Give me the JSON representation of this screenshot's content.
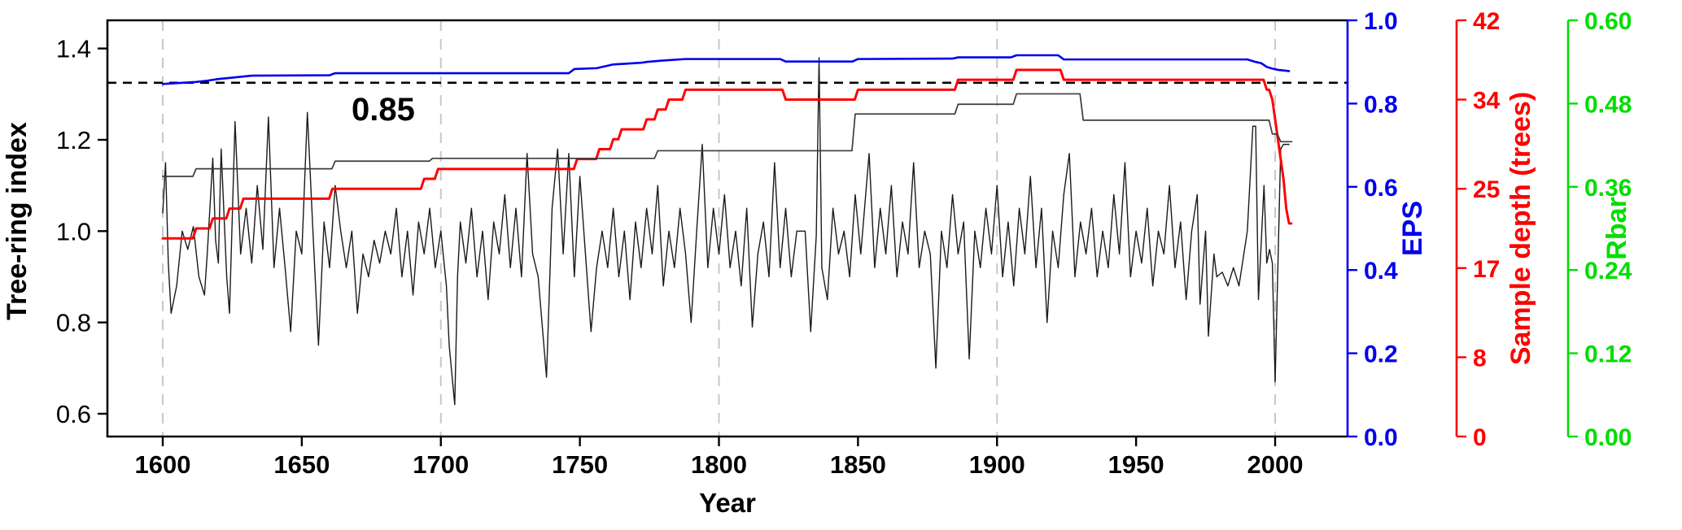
{
  "figure": {
    "background": "#ffffff",
    "frame_color": "#000000",
    "gridline_color": "#c8c8c8"
  },
  "chart_data": {
    "type": "line",
    "title": "",
    "xlabel": "Year",
    "x_range": [
      1580,
      2026
    ],
    "x_ticks": [
      1600,
      1650,
      1700,
      1750,
      1800,
      1850,
      1900,
      1950,
      2000
    ],
    "gridline_years": [
      1600,
      1700,
      1800,
      1900,
      2000
    ],
    "grid": "vertical-dashed",
    "legend": "none",
    "axes": [
      {
        "id": "tree_ring",
        "side": "left",
        "label": "Tree-ring index",
        "color": "#000000",
        "ticks": [
          1.4,
          1.2,
          1.0,
          0.8,
          0.6
        ],
        "tick_format": 1,
        "range": [
          0.6,
          1.4
        ]
      },
      {
        "id": "eps",
        "side": "right",
        "label": "EPS",
        "color": "#0000ee",
        "ticks": [
          1.0,
          0.8,
          0.6,
          0.4,
          0.2,
          0.0
        ],
        "tick_format": 1,
        "range": [
          0.0,
          1.0
        ]
      },
      {
        "id": "depth",
        "side": "right",
        "label": "Sample depth (trees)",
        "color": "#ff0000",
        "ticks": [
          42,
          34,
          25,
          17,
          8,
          0
        ],
        "tick_format": 0,
        "range": [
          0,
          42
        ]
      },
      {
        "id": "rbar",
        "side": "right",
        "label": "Rbar",
        "color": "#00dd00",
        "ticks": [
          0.6,
          0.48,
          0.36,
          0.24,
          0.12,
          0.0
        ],
        "tick_format": 2,
        "range": [
          0.0,
          0.6
        ]
      }
    ],
    "threshold": {
      "axis": "eps",
      "value": 0.85,
      "label": "0.85",
      "style": "dashed-black"
    },
    "series": [
      {
        "name": "tree_ring_index",
        "axis": "tree_ring",
        "color": "#1a1a1a",
        "width": 1.4,
        "step": false,
        "points": [
          [
            1600,
            1.04
          ],
          [
            1601,
            1.15
          ],
          [
            1602,
            0.93
          ],
          [
            1603,
            0.82
          ],
          [
            1605,
            0.88
          ],
          [
            1607,
            1.0
          ],
          [
            1609,
            0.96
          ],
          [
            1611,
            1.01
          ],
          [
            1613,
            0.9
          ],
          [
            1615,
            0.86
          ],
          [
            1616,
            0.95
          ],
          [
            1618,
            1.16
          ],
          [
            1619,
            0.98
          ],
          [
            1620,
            0.93
          ],
          [
            1621,
            1.18
          ],
          [
            1623,
            0.9
          ],
          [
            1624,
            0.82
          ],
          [
            1626,
            1.24
          ],
          [
            1628,
            0.95
          ],
          [
            1630,
            1.05
          ],
          [
            1632,
            0.93
          ],
          [
            1634,
            1.1
          ],
          [
            1636,
            0.96
          ],
          [
            1638,
            1.25
          ],
          [
            1640,
            0.92
          ],
          [
            1642,
            1.05
          ],
          [
            1644,
            0.92
          ],
          [
            1646,
            0.78
          ],
          [
            1648,
            1.0
          ],
          [
            1650,
            0.95
          ],
          [
            1652,
            1.26
          ],
          [
            1654,
            1.0
          ],
          [
            1656,
            0.75
          ],
          [
            1658,
            1.02
          ],
          [
            1660,
            0.92
          ],
          [
            1662,
            1.1
          ],
          [
            1664,
            1.0
          ],
          [
            1666,
            0.92
          ],
          [
            1668,
            1.0
          ],
          [
            1670,
            0.82
          ],
          [
            1672,
            0.95
          ],
          [
            1674,
            0.9
          ],
          [
            1676,
            0.98
          ],
          [
            1678,
            0.93
          ],
          [
            1680,
            1.0
          ],
          [
            1682,
            0.95
          ],
          [
            1684,
            1.05
          ],
          [
            1686,
            0.9
          ],
          [
            1688,
            1.0
          ],
          [
            1690,
            0.86
          ],
          [
            1692,
            1.02
          ],
          [
            1694,
            0.95
          ],
          [
            1696,
            1.05
          ],
          [
            1698,
            0.92
          ],
          [
            1700,
            1.0
          ],
          [
            1702,
            0.88
          ],
          [
            1703,
            0.75
          ],
          [
            1705,
            0.62
          ],
          [
            1706,
            0.9
          ],
          [
            1707,
            1.02
          ],
          [
            1709,
            0.93
          ],
          [
            1711,
            1.05
          ],
          [
            1713,
            0.9
          ],
          [
            1715,
            1.0
          ],
          [
            1717,
            0.85
          ],
          [
            1719,
            1.02
          ],
          [
            1721,
            0.95
          ],
          [
            1723,
            1.08
          ],
          [
            1725,
            0.92
          ],
          [
            1727,
            1.05
          ],
          [
            1729,
            0.9
          ],
          [
            1731,
            1.17
          ],
          [
            1733,
            0.95
          ],
          [
            1735,
            0.9
          ],
          [
            1738,
            0.68
          ],
          [
            1740,
            1.05
          ],
          [
            1742,
            1.18
          ],
          [
            1744,
            0.95
          ],
          [
            1746,
            1.17
          ],
          [
            1748,
            0.9
          ],
          [
            1750,
            1.12
          ],
          [
            1752,
            0.95
          ],
          [
            1754,
            0.78
          ],
          [
            1756,
            0.92
          ],
          [
            1758,
            1.0
          ],
          [
            1760,
            0.92
          ],
          [
            1762,
            1.05
          ],
          [
            1764,
            0.9
          ],
          [
            1766,
            1.0
          ],
          [
            1768,
            0.85
          ],
          [
            1770,
            1.02
          ],
          [
            1772,
            0.92
          ],
          [
            1774,
            1.05
          ],
          [
            1776,
            0.95
          ],
          [
            1778,
            1.1
          ],
          [
            1780,
            0.88
          ],
          [
            1782,
            1.0
          ],
          [
            1784,
            0.92
          ],
          [
            1786,
            1.05
          ],
          [
            1788,
            0.95
          ],
          [
            1790,
            0.8
          ],
          [
            1792,
            1.0
          ],
          [
            1794,
            1.19
          ],
          [
            1796,
            0.92
          ],
          [
            1798,
            1.05
          ],
          [
            1800,
            0.95
          ],
          [
            1802,
            1.08
          ],
          [
            1804,
            0.92
          ],
          [
            1806,
            1.0
          ],
          [
            1808,
            0.88
          ],
          [
            1810,
            1.05
          ],
          [
            1812,
            0.79
          ],
          [
            1814,
            0.95
          ],
          [
            1816,
            1.02
          ],
          [
            1818,
            0.9
          ],
          [
            1820,
            1.15
          ],
          [
            1822,
            0.92
          ],
          [
            1824,
            1.05
          ],
          [
            1826,
            0.9
          ],
          [
            1828,
            1.0
          ],
          [
            1831,
            1.0
          ],
          [
            1833,
            0.78
          ],
          [
            1835,
            0.99
          ],
          [
            1836,
            1.38
          ],
          [
            1837,
            0.92
          ],
          [
            1839,
            0.85
          ],
          [
            1841,
            1.05
          ],
          [
            1843,
            0.95
          ],
          [
            1845,
            1.0
          ],
          [
            1847,
            0.9
          ],
          [
            1849,
            1.08
          ],
          [
            1851,
            0.95
          ],
          [
            1854,
            1.17
          ],
          [
            1856,
            0.92
          ],
          [
            1858,
            1.05
          ],
          [
            1860,
            0.95
          ],
          [
            1862,
            1.1
          ],
          [
            1864,
            0.9
          ],
          [
            1866,
            1.02
          ],
          [
            1868,
            0.95
          ],
          [
            1870,
            1.15
          ],
          [
            1872,
            0.92
          ],
          [
            1874,
            1.0
          ],
          [
            1876,
            0.95
          ],
          [
            1878,
            0.7
          ],
          [
            1880,
            1.0
          ],
          [
            1882,
            0.92
          ],
          [
            1884,
            1.08
          ],
          [
            1886,
            0.95
          ],
          [
            1888,
            1.02
          ],
          [
            1890,
            0.72
          ],
          [
            1892,
            1.0
          ],
          [
            1894,
            0.92
          ],
          [
            1896,
            1.05
          ],
          [
            1898,
            0.95
          ],
          [
            1900,
            1.1
          ],
          [
            1902,
            0.9
          ],
          [
            1904,
            1.02
          ],
          [
            1906,
            0.88
          ],
          [
            1908,
            1.05
          ],
          [
            1910,
            0.95
          ],
          [
            1912,
            1.12
          ],
          [
            1914,
            0.92
          ],
          [
            1916,
            1.05
          ],
          [
            1918,
            0.8
          ],
          [
            1920,
            1.0
          ],
          [
            1922,
            0.92
          ],
          [
            1924,
            1.08
          ],
          [
            1926,
            1.17
          ],
          [
            1928,
            0.9
          ],
          [
            1930,
            1.02
          ],
          [
            1932,
            0.95
          ],
          [
            1934,
            1.05
          ],
          [
            1936,
            0.9
          ],
          [
            1938,
            1.0
          ],
          [
            1940,
            0.92
          ],
          [
            1942,
            1.08
          ],
          [
            1944,
            0.95
          ],
          [
            1946,
            1.15
          ],
          [
            1948,
            0.9
          ],
          [
            1950,
            1.0
          ],
          [
            1952,
            0.93
          ],
          [
            1954,
            1.05
          ],
          [
            1956,
            0.88
          ],
          [
            1958,
            1.0
          ],
          [
            1960,
            0.95
          ],
          [
            1962,
            1.1
          ],
          [
            1964,
            0.92
          ],
          [
            1966,
            1.02
          ],
          [
            1968,
            0.85
          ],
          [
            1970,
            1.0
          ],
          [
            1972,
            1.08
          ],
          [
            1973,
            0.84
          ],
          [
            1975,
            1.0
          ],
          [
            1976,
            0.77
          ],
          [
            1978,
            0.95
          ],
          [
            1979,
            0.9
          ],
          [
            1981,
            0.91
          ],
          [
            1983,
            0.88
          ],
          [
            1985,
            0.92
          ],
          [
            1987,
            0.88
          ],
          [
            1990,
            1.0
          ],
          [
            1992,
            1.23
          ],
          [
            1993,
            1.23
          ],
          [
            1994,
            0.85
          ],
          [
            1996,
            1.1
          ],
          [
            1997,
            0.93
          ],
          [
            1998,
            0.96
          ],
          [
            1999,
            0.93
          ],
          [
            2000,
            0.67
          ],
          [
            2002,
            1.18
          ],
          [
            2003,
            1.19
          ],
          [
            2005,
            1.19
          ]
        ]
      },
      {
        "name": "eps",
        "axis": "eps",
        "color": "#0000ee",
        "width": 2.6,
        "step": false,
        "points": [
          [
            1600,
            0.847
          ],
          [
            1612,
            0.852
          ],
          [
            1616,
            0.855
          ],
          [
            1620,
            0.859
          ],
          [
            1626,
            0.863
          ],
          [
            1632,
            0.867
          ],
          [
            1660,
            0.868
          ],
          [
            1662,
            0.873
          ],
          [
            1746,
            0.873
          ],
          [
            1748,
            0.883
          ],
          [
            1756,
            0.885
          ],
          [
            1758,
            0.888
          ],
          [
            1762,
            0.894
          ],
          [
            1772,
            0.898
          ],
          [
            1774,
            0.9
          ],
          [
            1779,
            0.903
          ],
          [
            1788,
            0.907
          ],
          [
            1822,
            0.907
          ],
          [
            1824,
            0.901
          ],
          [
            1848,
            0.901
          ],
          [
            1850,
            0.907
          ],
          [
            1884,
            0.908
          ],
          [
            1886,
            0.911
          ],
          [
            1905,
            0.911
          ],
          [
            1907,
            0.916
          ],
          [
            1922,
            0.916
          ],
          [
            1924,
            0.906
          ],
          [
            1990,
            0.906
          ],
          [
            1993,
            0.9
          ],
          [
            1995,
            0.897
          ],
          [
            1997,
            0.888
          ],
          [
            1999,
            0.884
          ],
          [
            2001,
            0.881
          ],
          [
            2005,
            0.878
          ]
        ]
      },
      {
        "name": "sample_depth",
        "axis": "depth",
        "color": "#ff0000",
        "width": 3.0,
        "step": true,
        "points": [
          [
            1600,
            20
          ],
          [
            1612,
            21
          ],
          [
            1618,
            22
          ],
          [
            1624,
            23
          ],
          [
            1629,
            24
          ],
          [
            1661,
            25
          ],
          [
            1694,
            26
          ],
          [
            1699,
            27
          ],
          [
            1749,
            28
          ],
          [
            1757,
            29
          ],
          [
            1762,
            30
          ],
          [
            1765,
            31
          ],
          [
            1774,
            32
          ],
          [
            1778,
            33
          ],
          [
            1782,
            34
          ],
          [
            1788,
            35
          ],
          [
            1824,
            34
          ],
          [
            1850,
            35
          ],
          [
            1886,
            36
          ],
          [
            1907,
            37
          ],
          [
            1924,
            36
          ],
          [
            1997,
            35
          ],
          [
            1999,
            34
          ],
          [
            2000,
            32
          ],
          [
            2001,
            30
          ],
          [
            2002,
            28
          ],
          [
            2003,
            26
          ],
          [
            2004,
            23
          ],
          [
            2005,
            21.5
          ],
          [
            2005.8,
            21.5
          ]
        ]
      },
      {
        "name": "rbar",
        "axis": "rbar",
        "color": "#3b3b3b",
        "width": 1.7,
        "step": true,
        "points": [
          [
            1600,
            0.375
          ],
          [
            1612,
            0.386
          ],
          [
            1662,
            0.397
          ],
          [
            1697,
            0.401
          ],
          [
            1778,
            0.412
          ],
          [
            1849,
            0.465
          ],
          [
            1886,
            0.479
          ],
          [
            1907,
            0.494
          ],
          [
            1931,
            0.456
          ],
          [
            1999,
            0.436
          ],
          [
            2002,
            0.425
          ],
          [
            2006,
            0.425
          ]
        ]
      }
    ]
  }
}
